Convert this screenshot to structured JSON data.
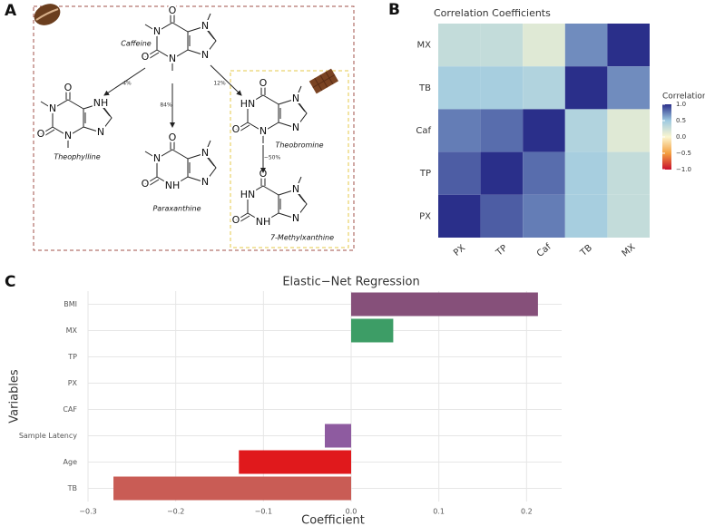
{
  "panel_labels": [
    "A",
    "B",
    "C"
  ],
  "diagram": {
    "molecules": [
      {
        "name": "Caffeine",
        "atoms": [
          "O",
          "N",
          "O",
          "N",
          "N",
          "N"
        ]
      },
      {
        "name": "Theophylline",
        "atoms": [
          "O",
          "N",
          "O",
          "N",
          "NH",
          "N"
        ]
      },
      {
        "name": "Paraxanthine",
        "atoms": [
          "O",
          "N",
          "O",
          "NH",
          "N",
          "N"
        ]
      },
      {
        "name": "Theobromine",
        "atoms": [
          "O",
          "HN",
          "O",
          "N",
          "N",
          "N"
        ]
      },
      {
        "name": "7-Methylxanthine",
        "atoms": [
          "O",
          "HN",
          "O",
          "NH",
          "N",
          "N"
        ]
      }
    ],
    "arrows": [
      {
        "label": "4%"
      },
      {
        "label": "84%"
      },
      {
        "label": "12%"
      },
      {
        "label": "~50%"
      }
    ]
  },
  "chart_data": [
    {
      "type": "heatmap",
      "title": "Correlation Coefficients",
      "x": [
        "PX",
        "TP",
        "Caf",
        "TB",
        "MX"
      ],
      "y": [
        "MX",
        "TB",
        "Caf",
        "TP",
        "PX"
      ],
      "values": [
        [
          0.3,
          0.3,
          0.15,
          0.7,
          1
        ],
        [
          0.45,
          0.45,
          0.4,
          1,
          0.7
        ],
        [
          0.75,
          0.8,
          1,
          0.4,
          0.15
        ],
        [
          0.85,
          1,
          0.8,
          0.45,
          0.3
        ],
        [
          1,
          0.85,
          0.75,
          0.45,
          0.3
        ]
      ],
      "legend_title": "Correlation",
      "clim": [
        -1,
        1
      ],
      "colorscale": [
        "#c8102e",
        "#f4a040",
        "#fbf6d0",
        "#9ecae1",
        "#2a2f8a"
      ],
      "colorbar_ticks": [
        {
          "value": 1,
          "label": "1.0"
        },
        0.5,
        {
          "value": 0,
          "label": "0.0"
        },
        {
          "value": -0.5,
          "label": "−0.5"
        },
        {
          "value": -1,
          "label": "−1.0"
        }
      ]
    },
    {
      "type": "barh",
      "title": "Elastic−Net Regression",
      "xlabel": "Coefficient",
      "ylabel": "Variables",
      "categories": [
        "BMI",
        "MX",
        "TP",
        "PX",
        "CAF",
        "Sample Latency",
        "Age",
        "TB"
      ],
      "values": [
        0.213,
        0.048,
        0,
        0,
        0,
        -0.03,
        -0.128,
        -0.271
      ],
      "colors": [
        "#86507a",
        "#3d9d66",
        null,
        null,
        null,
        "#8e5ba0",
        "#e0191c",
        "#c95c55"
      ],
      "xlim": [
        -0.3,
        0.24
      ],
      "xticks": [
        {
          "value": -0.3,
          "label": "−0.3"
        },
        {
          "value": -0.2,
          "label": "−0.2"
        },
        {
          "value": -0.1,
          "label": "−0.1"
        },
        {
          "value": 0,
          "label": "0.0"
        },
        0.1,
        0.2
      ],
      "grid": true
    }
  ]
}
